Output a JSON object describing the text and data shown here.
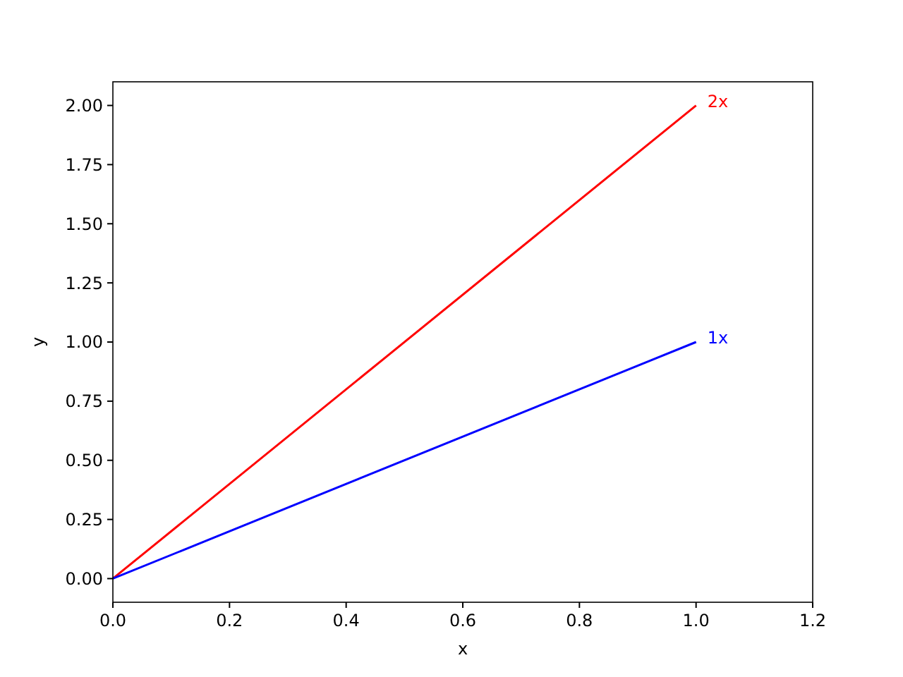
{
  "chart_data": {
    "type": "line",
    "xlabel": "x",
    "ylabel": "y",
    "x": [
      0,
      1
    ],
    "series": [
      {
        "name": "2x",
        "color": "#ff0000",
        "values": [
          0,
          2
        ]
      },
      {
        "name": "1x",
        "color": "#0000ff",
        "values": [
          0,
          1
        ]
      }
    ],
    "xlim": [
      0,
      1.2
    ],
    "ylim": [
      -0.1,
      2.1
    ],
    "xticks": [
      {
        "value": 0,
        "label": "0.0"
      },
      {
        "value": 0.2,
        "label": "0.2"
      },
      {
        "value": 0.4,
        "label": "0.4"
      },
      {
        "value": 0.6,
        "label": "0.6"
      },
      {
        "value": 0.8,
        "label": "0.8"
      },
      {
        "value": 1,
        "label": "1.0"
      },
      {
        "value": 1.2,
        "label": "1.2"
      }
    ],
    "yticks": [
      {
        "value": 0,
        "label": "0.00"
      },
      {
        "value": 0.25,
        "label": "0.25"
      },
      {
        "value": 0.5,
        "label": "0.50"
      },
      {
        "value": 0.75,
        "label": "0.75"
      },
      {
        "value": 1,
        "label": "1.00"
      },
      {
        "value": 1.25,
        "label": "1.25"
      },
      {
        "value": 1.5,
        "label": "1.50"
      },
      {
        "value": 1.75,
        "label": "1.75"
      },
      {
        "value": 2,
        "label": "2.00"
      }
    ],
    "grid": false,
    "legend": false,
    "marker": "none",
    "line_style": "solid"
  }
}
